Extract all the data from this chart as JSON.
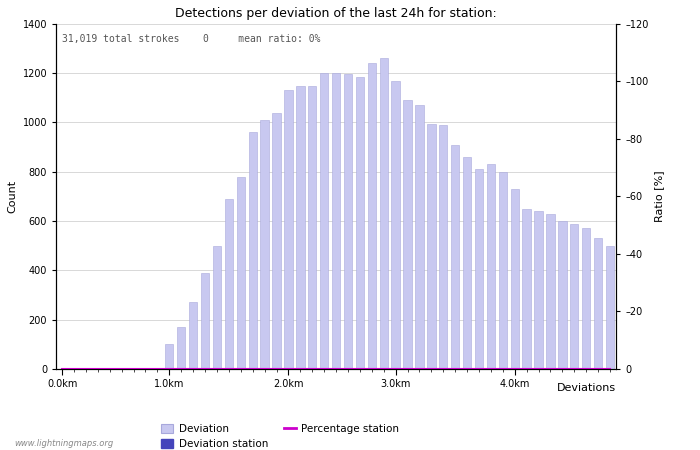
{
  "title": "Detections per deviation of the last 24h for station:",
  "subtitle": "31,019 total strokes    0     mean ratio: 0%",
  "xlabel": "Deviations",
  "ylabel_left": "Count",
  "ylabel_right": "Ratio [%]",
  "ylim_left": [
    0,
    1400
  ],
  "ylim_right": [
    0,
    120
  ],
  "yticks_left": [
    0,
    200,
    400,
    600,
    800,
    1000,
    1200,
    1400
  ],
  "yticks_right": [
    0,
    20,
    40,
    60,
    80,
    100,
    120
  ],
  "xtick_labels": [
    "0.0km",
    "1.0km",
    "2.0km",
    "3.0km",
    "4.0km"
  ],
  "xtick_positions": [
    0,
    9,
    19,
    28,
    38
  ],
  "bar_color": "#c8c8f0",
  "bar_edge_color": "#a8a8dc",
  "station_bar_color": "#4444bb",
  "line_color": "#cc00cc",
  "watermark": "www.lightningmaps.org",
  "legend_labels": [
    "Deviation",
    "Deviation station",
    "Percentage station"
  ],
  "bar_values": [
    2,
    0,
    0,
    0,
    0,
    1,
    1,
    0,
    0,
    100,
    170,
    270,
    390,
    500,
    690,
    780,
    960,
    1010,
    1040,
    1130,
    1150,
    1150,
    1200,
    1200,
    1195,
    1185,
    1240,
    1260,
    1170,
    1090,
    1070,
    995,
    990,
    910,
    860,
    810,
    830,
    800,
    730,
    650,
    640,
    630,
    600,
    590,
    570,
    530,
    500
  ],
  "percentage_values": [
    0,
    0,
    0,
    0,
    0,
    0,
    0,
    0,
    0,
    0,
    0,
    0,
    0,
    0,
    0,
    0,
    0,
    0,
    0,
    0,
    0,
    0,
    0,
    0,
    0,
    0,
    0,
    0,
    0,
    0,
    0,
    0,
    0,
    0,
    0,
    0,
    0,
    0,
    0,
    0,
    0,
    0,
    0,
    0,
    0,
    0,
    0
  ],
  "figsize": [
    7.0,
    4.5
  ],
  "dpi": 100,
  "background_color": "#ffffff",
  "grid_color": "#bbbbbb"
}
